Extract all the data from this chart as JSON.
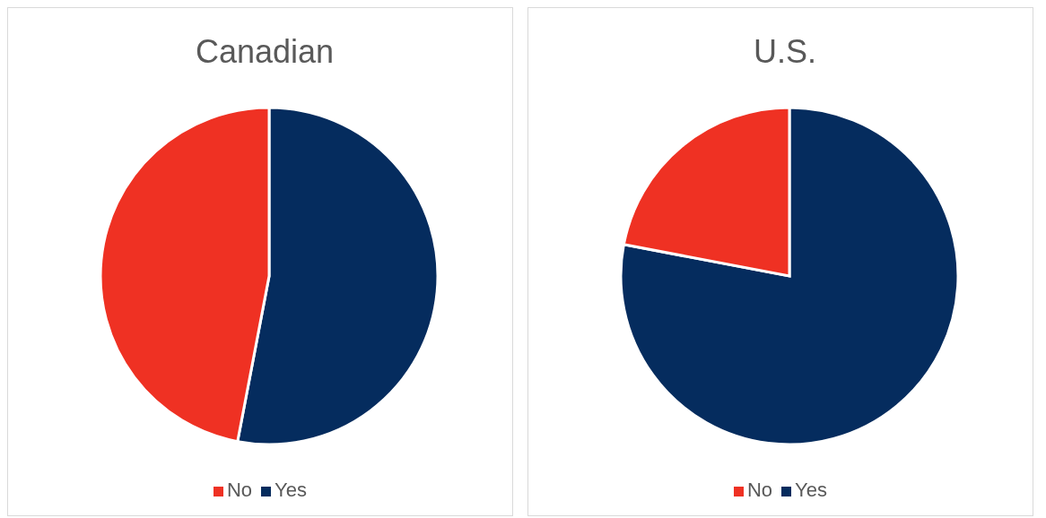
{
  "chart_data": [
    {
      "type": "pie",
      "title": "Canadian",
      "categories": [
        "Yes",
        "No"
      ],
      "values": [
        53,
        47
      ],
      "colors": [
        "#052c5e",
        "#ef3123"
      ],
      "legend": "bottom"
    },
    {
      "type": "pie",
      "title": "U.S.",
      "categories": [
        "Yes",
        "No"
      ],
      "values": [
        78,
        22
      ],
      "colors": [
        "#052c5e",
        "#ef3123"
      ],
      "legend": "bottom"
    }
  ]
}
